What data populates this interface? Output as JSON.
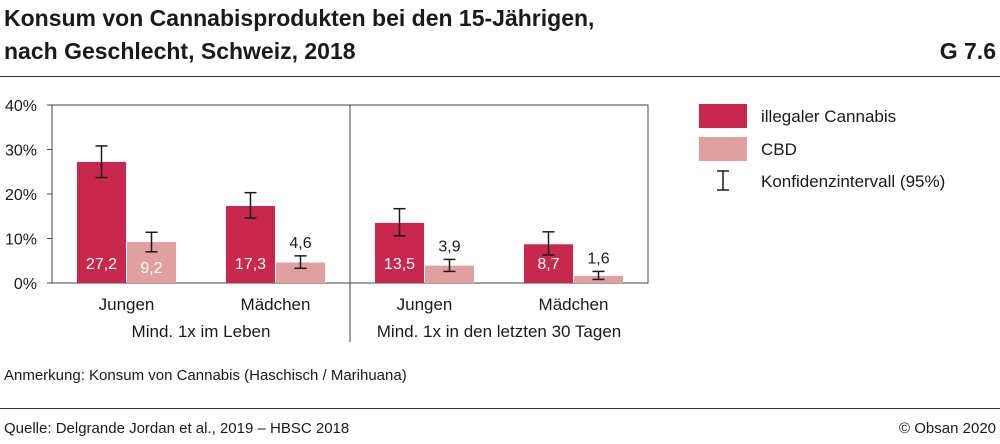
{
  "header": {
    "title_line1": "Konsum von Cannabisprodukten bei den 15-Jährigen,",
    "title_line2": "nach Geschlecht, Schweiz, 2018",
    "figure_id": "G 7.6"
  },
  "footer": {
    "note": "Anmerkung: Konsum von Cannabis (Haschisch / Marihuana)",
    "source": "Quelle: Delgrande Jordan et al., 2019 – HBSC 2018",
    "copyright": "© Obsan 2020"
  },
  "colors": {
    "illegal": "#c8284e",
    "cbd": "#e0a0a0",
    "axis": "#444444"
  },
  "chart_data": {
    "type": "bar",
    "title": "Konsum von Cannabisprodukten bei den 15-Jährigen, nach Geschlecht, Schweiz, 2018",
    "xlabel": "",
    "ylabel": "",
    "ylim": [
      0,
      40
    ],
    "y_ticks": [
      0,
      10,
      20,
      30,
      40
    ],
    "y_tick_labels": [
      "0%",
      "10%",
      "20%",
      "30%",
      "40%"
    ],
    "categories": [
      "Jungen",
      "Mädchen",
      "Jungen",
      "Mädchen"
    ],
    "groups": [
      {
        "label": "Mind. 1x im Leben",
        "categories": [
          "Jungen",
          "Mädchen"
        ]
      },
      {
        "label": "Mind. 1x in den letzten 30 Tagen",
        "categories": [
          "Jungen",
          "Mädchen"
        ]
      }
    ],
    "series": [
      {
        "name": "illegaler Cannabis",
        "values": [
          27.2,
          17.3,
          13.5,
          8.7
        ],
        "value_labels": [
          "27,2",
          "17,3",
          "13,5",
          "8,7"
        ],
        "ci_low": [
          23.7,
          14.6,
          10.6,
          6.3
        ],
        "ci_high": [
          30.8,
          20.3,
          16.7,
          11.5
        ]
      },
      {
        "name": "CBD",
        "values": [
          9.2,
          4.6,
          3.9,
          1.6
        ],
        "value_labels": [
          "9,2",
          "4,6",
          "3,9",
          "1,6"
        ],
        "ci_low": [
          7.0,
          3.3,
          2.6,
          0.8
        ],
        "ci_high": [
          11.4,
          6.1,
          5.3,
          2.6
        ]
      }
    ],
    "legend": {
      "position": "right",
      "items": [
        "illegaler Cannabis",
        "CBD",
        "Konfidenzintervall (95%)"
      ]
    }
  }
}
